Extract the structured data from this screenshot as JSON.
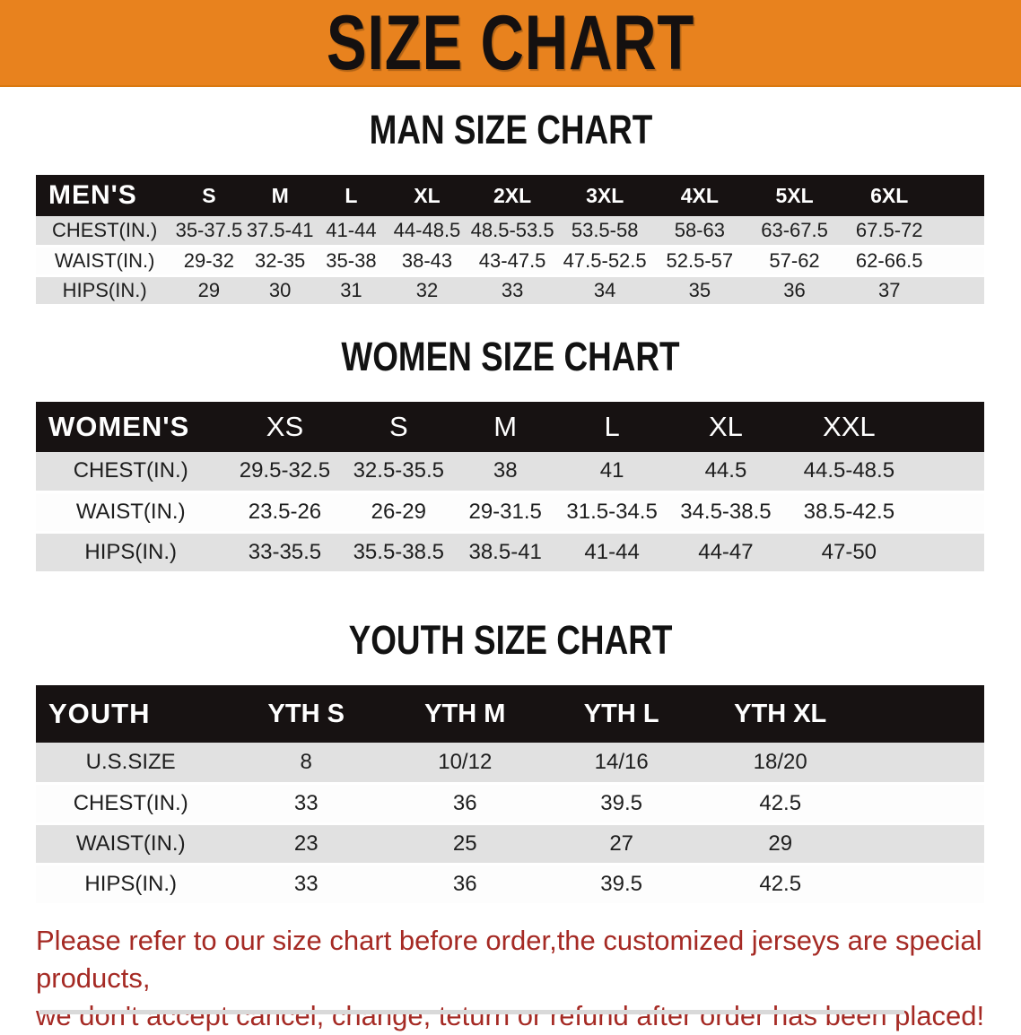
{
  "banner": {
    "title": "SIZE CHART"
  },
  "sections": {
    "men": {
      "heading": "MAN SIZE CHART",
      "table": {
        "corner_label": "MEN'S",
        "columns": [
          "S",
          "M",
          "L",
          "XL",
          "2XL",
          "3XL",
          "4XL",
          "5XL",
          "6XL"
        ],
        "rows": [
          {
            "label": "CHEST(IN.)",
            "values": [
              "35-37.5",
              "37.5-41",
              "41-44",
              "44-48.5",
              "48.5-53.5",
              "53.5-58",
              "58-63",
              "63-67.5",
              "67.5-72"
            ]
          },
          {
            "label": "WAIST(IN.)",
            "values": [
              "29-32",
              "32-35",
              "35-38",
              "38-43",
              "43-47.5",
              "47.5-52.5",
              "52.5-57",
              "57-62",
              "62-66.5"
            ]
          },
          {
            "label": "HIPS(IN.)",
            "values": [
              "29",
              "30",
              "31",
              "32",
              "33",
              "34",
              "35",
              "36",
              "37"
            ]
          }
        ]
      }
    },
    "women": {
      "heading": "WOMEN SIZE CHART",
      "table": {
        "corner_label": "WOMEN'S",
        "columns": [
          "XS",
          "S",
          "M",
          "L",
          "XL",
          "XXL"
        ],
        "rows": [
          {
            "label": "CHEST(IN.)",
            "values": [
              "29.5-32.5",
              "32.5-35.5",
              "38",
              "41",
              "44.5",
              "44.5-48.5"
            ]
          },
          {
            "label": "WAIST(IN.)",
            "values": [
              "23.5-26",
              "26-29",
              "29-31.5",
              "31.5-34.5",
              "34.5-38.5",
              "38.5-42.5"
            ]
          },
          {
            "label": "HIPS(IN.)",
            "values": [
              "33-35.5",
              "35.5-38.5",
              "38.5-41",
              "41-44",
              "44-47",
              "47-50"
            ]
          }
        ]
      }
    },
    "youth": {
      "heading": "YOUTH SIZE CHART",
      "table": {
        "corner_label": "YOUTH",
        "columns": [
          "YTH S",
          "YTH M",
          "YTH L",
          "YTH XL"
        ],
        "rows": [
          {
            "label": "U.S.SIZE",
            "values": [
              "8",
              "10/12",
              "14/16",
              "18/20"
            ]
          },
          {
            "label": "CHEST(IN.)",
            "values": [
              "33",
              "36",
              "39.5",
              "42.5"
            ]
          },
          {
            "label": "WAIST(IN.)",
            "values": [
              "23",
              "25",
              "27",
              "29"
            ]
          },
          {
            "label": "HIPS(IN.)",
            "values": [
              "33",
              "36",
              "39.5",
              "42.5"
            ]
          }
        ]
      }
    }
  },
  "disclaimer": {
    "line1": "Please refer to our size chart before order,the customized jerseys are special products,",
    "line2": "we don't accept cancel, change, teturn or refund after order has been placed!"
  },
  "colors": {
    "banner_bg": "#E8821E",
    "table_header_bg": "#171212",
    "row_gray": "#E1E1E1",
    "disclaimer_red": "#A52A24"
  }
}
